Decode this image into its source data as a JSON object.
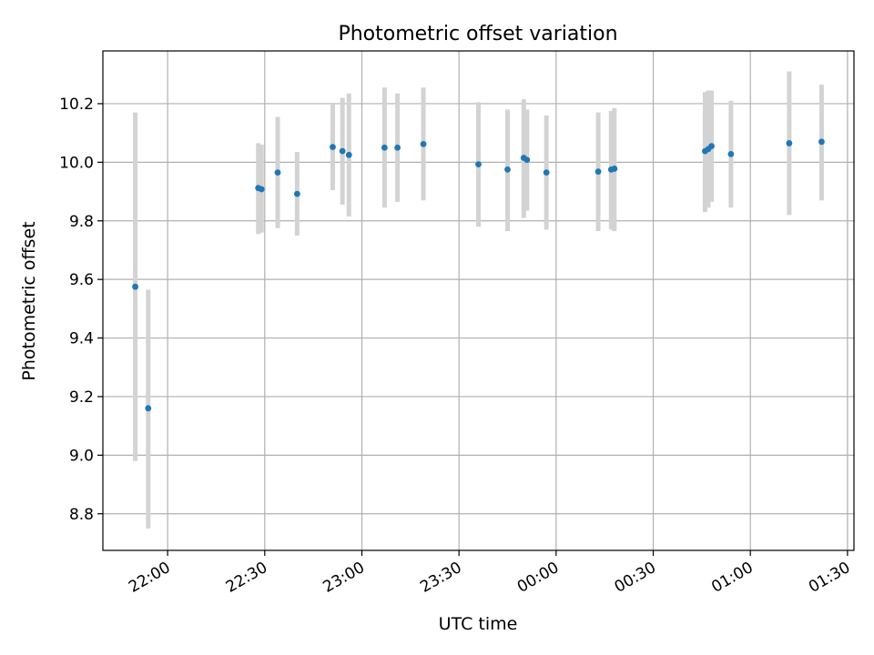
{
  "chart_data": {
    "type": "scatter",
    "title": "Photometric offset variation",
    "xlabel": "UTC time",
    "ylabel": "Photometric offset",
    "x_tick_labels": [
      "22:00",
      "22:30",
      "23:00",
      "23:30",
      "00:00",
      "00:30",
      "01:00",
      "01:30"
    ],
    "y_tick_labels": [
      "8.8",
      "9.0",
      "9.2",
      "9.4",
      "9.6",
      "9.8",
      "10.0",
      "10.2"
    ],
    "x_axis": {
      "start": "21:40",
      "end": "01:32",
      "ticks_every_minutes": 30
    },
    "y_axis": {
      "min": 8.675,
      "max": 10.38,
      "ticks": [
        8.8,
        9.0,
        9.2,
        9.4,
        9.6,
        9.8,
        10.0,
        10.2
      ]
    },
    "grid": true,
    "colors": {
      "points": "#1f77b4",
      "error_bars": "#d3d3d3",
      "grid": "#b0b0b0"
    },
    "series": [
      {
        "points": [
          {
            "x": "21:50",
            "y": 9.575,
            "ylow": 8.98,
            "yhigh": 10.17
          },
          {
            "x": "21:54",
            "y": 9.16,
            "ylow": 8.75,
            "yhigh": 9.565
          },
          {
            "x": "22:28",
            "y": 9.912,
            "ylow": 9.755,
            "yhigh": 10.065
          },
          {
            "x": "22:29",
            "y": 9.908,
            "ylow": 9.76,
            "yhigh": 10.06
          },
          {
            "x": "22:34",
            "y": 9.965,
            "ylow": 9.775,
            "yhigh": 10.155
          },
          {
            "x": "22:40",
            "y": 9.892,
            "ylow": 9.75,
            "yhigh": 10.035
          },
          {
            "x": "22:51",
            "y": 10.052,
            "ylow": 9.905,
            "yhigh": 10.2
          },
          {
            "x": "22:54",
            "y": 10.038,
            "ylow": 9.855,
            "yhigh": 10.22
          },
          {
            "x": "22:56",
            "y": 10.025,
            "ylow": 9.815,
            "yhigh": 10.235
          },
          {
            "x": "23:07",
            "y": 10.05,
            "ylow": 9.845,
            "yhigh": 10.255
          },
          {
            "x": "23:11",
            "y": 10.05,
            "ylow": 9.865,
            "yhigh": 10.235
          },
          {
            "x": "23:19",
            "y": 10.062,
            "ylow": 9.87,
            "yhigh": 10.255
          },
          {
            "x": "23:36",
            "y": 9.993,
            "ylow": 9.78,
            "yhigh": 10.205
          },
          {
            "x": "23:45",
            "y": 9.975,
            "ylow": 9.765,
            "yhigh": 10.18
          },
          {
            "x": "23:50",
            "y": 10.015,
            "ylow": 9.81,
            "yhigh": 10.215
          },
          {
            "x": "23:51",
            "y": 10.008,
            "ylow": 9.835,
            "yhigh": 10.18
          },
          {
            "x": "23:57",
            "y": 9.965,
            "ylow": 9.77,
            "yhigh": 10.16
          },
          {
            "x": "00:13",
            "y": 9.968,
            "ylow": 9.765,
            "yhigh": 10.17
          },
          {
            "x": "00:17",
            "y": 9.975,
            "ylow": 9.77,
            "yhigh": 10.175
          },
          {
            "x": "00:18",
            "y": 9.978,
            "ylow": 9.765,
            "yhigh": 10.185
          },
          {
            "x": "00:46",
            "y": 10.038,
            "ylow": 9.83,
            "yhigh": 10.24
          },
          {
            "x": "00:47",
            "y": 10.045,
            "ylow": 9.845,
            "yhigh": 10.245
          },
          {
            "x": "00:48",
            "y": 10.055,
            "ylow": 9.865,
            "yhigh": 10.245
          },
          {
            "x": "00:54",
            "y": 10.028,
            "ylow": 9.845,
            "yhigh": 10.21
          },
          {
            "x": "01:12",
            "y": 10.065,
            "ylow": 9.82,
            "yhigh": 10.31
          },
          {
            "x": "01:22",
            "y": 10.07,
            "ylow": 9.87,
            "yhigh": 10.265
          }
        ]
      }
    ]
  }
}
